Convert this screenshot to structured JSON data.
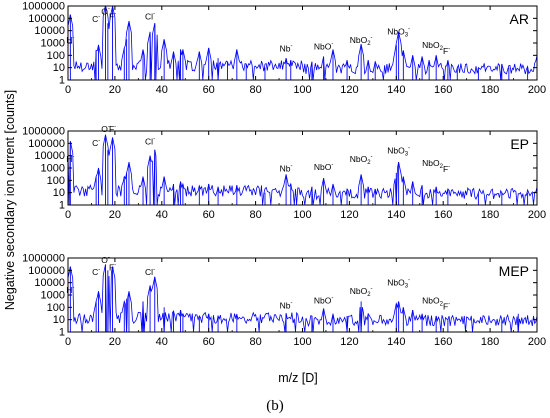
{
  "figure": {
    "ylabel": "Negative secondary ion current [counts]",
    "xlabel": "m/z [D]",
    "caption": "(b)"
  },
  "chart_data": [
    {
      "type": "line",
      "panel": "AR",
      "x_ticks": [
        0,
        20,
        40,
        60,
        80,
        100,
        120,
        140,
        160,
        180,
        200
      ],
      "y_ticks": [
        "1",
        "10",
        "100",
        "1000",
        "10000",
        "100000",
        "1000000"
      ],
      "xlim": [
        0,
        200
      ],
      "ylim": [
        1,
        1000000
      ],
      "yscale": "log",
      "series": [
        {
          "color": "#0000ff",
          "peaks": [
            [
              1,
              200000
            ],
            [
              12,
              250
            ],
            [
              13,
              700
            ],
            [
              16,
              1200000
            ],
            [
              17,
              40000
            ],
            [
              19,
              1000000
            ],
            [
              24,
              400
            ],
            [
              25,
              2000
            ],
            [
              26,
              60000
            ],
            [
              32,
              300
            ],
            [
              35,
              8000
            ],
            [
              37,
              40000
            ],
            [
              41,
              2000
            ],
            [
              45,
              200
            ],
            [
              48,
              300
            ],
            [
              49,
              300
            ],
            [
              56,
              200
            ],
            [
              60,
              400
            ],
            [
              64,
              60
            ],
            [
              68,
              30
            ],
            [
              72,
              300
            ],
            [
              76,
              20
            ],
            [
              84,
              10
            ],
            [
              93,
              60
            ],
            [
              95,
              40
            ],
            [
              104,
              30
            ],
            [
              109,
              80
            ],
            [
              113,
              300
            ],
            [
              119,
              40
            ],
            [
              125,
              800
            ],
            [
              128,
              40
            ],
            [
              131,
              30
            ],
            [
              140,
              700
            ],
            [
              141,
              8000
            ],
            [
              143,
              250
            ],
            [
              147,
              100
            ],
            [
              151,
              80
            ],
            [
              154,
              40
            ],
            [
              157,
              100
            ],
            [
              162,
              40
            ],
            [
              166,
              10
            ],
            [
              175,
              10
            ],
            [
              185,
              20
            ],
            [
              188,
              10
            ],
            [
              196,
              10
            ],
            [
              200,
              100
            ]
          ]
        }
      ],
      "annotations": [
        {
          "ion": "H",
          "charge": "-",
          "sub": "",
          "x": 1,
          "y": 1000
        },
        {
          "ion": "C",
          "charge": "-",
          "sub": "",
          "x": 12,
          "y": 50000
        },
        {
          "ion": "O",
          "charge": "-",
          "sub": "",
          "x": 16,
          "y": 200000
        },
        {
          "ion": "F",
          "charge": "-",
          "sub": "",
          "x": 19,
          "y": 80000
        },
        {
          "ion": "Cl",
          "charge": "-",
          "sub": "",
          "x": 35,
          "y": 80000
        },
        {
          "ion": "Nb",
          "charge": "-",
          "sub": "",
          "x": 93,
          "y": 200
        },
        {
          "ion": "NbO",
          "charge": "-",
          "sub": "",
          "x": 109,
          "y": 300
        },
        {
          "ion": "NbO",
          "charge": "-",
          "sub": "2",
          "x": 125,
          "y": 1000
        },
        {
          "ion": "NbO",
          "charge": "-",
          "sub": "3",
          "x": 141,
          "y": 5000
        },
        {
          "ion": "NbO",
          "charge": "",
          "sub": "2",
          "tail": "F",
          "tail_charge": "-",
          "x": 157,
          "y": 400
        }
      ]
    },
    {
      "type": "line",
      "panel": "EP",
      "x_ticks": [
        0,
        20,
        40,
        60,
        80,
        100,
        120,
        140,
        160,
        180,
        200
      ],
      "y_ticks": [
        "1",
        "10",
        "100",
        "1000",
        "10000",
        "100000",
        "1000000"
      ],
      "xlim": [
        0,
        200
      ],
      "ylim": [
        1,
        1000000
      ],
      "yscale": "log",
      "series": [
        {
          "color": "#0000ff",
          "peaks": [
            [
              1,
              150000
            ],
            [
              12,
              200
            ],
            [
              13,
              1000
            ],
            [
              16,
              500000
            ],
            [
              17,
              30000
            ],
            [
              19,
              300000
            ],
            [
              24,
              200
            ],
            [
              25,
              400
            ],
            [
              26,
              3000
            ],
            [
              32,
              200
            ],
            [
              35,
              10000
            ],
            [
              37,
              30000
            ],
            [
              41,
              200
            ],
            [
              45,
              50
            ],
            [
              48,
              80
            ],
            [
              49,
              50
            ],
            [
              56,
              30
            ],
            [
              60,
              50
            ],
            [
              64,
              30
            ],
            [
              72,
              40
            ],
            [
              84,
              10
            ],
            [
              93,
              300
            ],
            [
              95,
              50
            ],
            [
              104,
              30
            ],
            [
              109,
              150
            ],
            [
              113,
              50
            ],
            [
              119,
              20
            ],
            [
              125,
              300
            ],
            [
              128,
              30
            ],
            [
              131,
              20
            ],
            [
              140,
              400
            ],
            [
              141,
              3000
            ],
            [
              143,
              200
            ],
            [
              147,
              80
            ],
            [
              151,
              40
            ],
            [
              157,
              30
            ],
            [
              162,
              20
            ],
            [
              175,
              10
            ],
            [
              185,
              10
            ],
            [
              196,
              10
            ],
            [
              200,
              30
            ]
          ]
        }
      ],
      "annotations": [
        {
          "ion": "H",
          "charge": "-",
          "sub": "",
          "x": 1,
          "y": 3000
        },
        {
          "ion": "C",
          "charge": "-",
          "sub": "",
          "x": 12,
          "y": 60000
        },
        {
          "ion": "O",
          "charge": "-",
          "sub": "",
          "x": 16,
          "y": 800000
        },
        {
          "ion": "F",
          "charge": "-",
          "sub": "",
          "x": 19,
          "y": 800000
        },
        {
          "ion": "Cl",
          "charge": "-",
          "sub": "",
          "x": 35,
          "y": 80000
        },
        {
          "ion": "Nb",
          "charge": "-",
          "sub": "",
          "x": 93,
          "y": 500
        },
        {
          "ion": "NbO",
          "charge": "-",
          "sub": "",
          "x": 109,
          "y": 700
        },
        {
          "ion": "NbO",
          "charge": "-",
          "sub": "2",
          "x": 125,
          "y": 3000
        },
        {
          "ion": "NbO",
          "charge": "-",
          "sub": "3",
          "x": 141,
          "y": 15000
        },
        {
          "ion": "NbO",
          "charge": "",
          "sub": "2",
          "tail": "F",
          "tail_charge": "-",
          "x": 157,
          "y": 1500
        }
      ]
    },
    {
      "type": "line",
      "panel": "MEP",
      "x_ticks": [
        0,
        20,
        40,
        60,
        80,
        100,
        120,
        140,
        160,
        180,
        200
      ],
      "y_ticks": [
        "1",
        "10",
        "100",
        "1000",
        "10000",
        "100000",
        "1000000"
      ],
      "xlim": [
        0,
        200
      ],
      "ylim": [
        1,
        1000000
      ],
      "yscale": "log",
      "series": [
        {
          "color": "#0000ff",
          "peaks": [
            [
              1,
              200000
            ],
            [
              12,
              300
            ],
            [
              13,
              2000
            ],
            [
              16,
              300000
            ],
            [
              17,
              100000
            ],
            [
              19,
              200000
            ],
            [
              24,
              300
            ],
            [
              25,
              500
            ],
            [
              26,
              2000
            ],
            [
              32,
              300
            ],
            [
              35,
              6000
            ],
            [
              37,
              30000
            ],
            [
              41,
              100
            ],
            [
              45,
              50
            ],
            [
              48,
              60
            ],
            [
              49,
              30
            ],
            [
              56,
              20
            ],
            [
              60,
              30
            ],
            [
              64,
              20
            ],
            [
              72,
              20
            ],
            [
              93,
              30
            ],
            [
              104,
              20
            ],
            [
              109,
              80
            ],
            [
              113,
              30
            ],
            [
              119,
              20
            ],
            [
              125,
              300
            ],
            [
              128,
              30
            ],
            [
              140,
              200
            ],
            [
              141,
              300
            ],
            [
              143,
              100
            ],
            [
              147,
              60
            ],
            [
              151,
              30
            ],
            [
              157,
              20
            ],
            [
              162,
              10
            ],
            [
              185,
              10
            ],
            [
              192,
              30
            ],
            [
              200,
              20
            ]
          ]
        }
      ],
      "annotations": [
        {
          "ion": "H",
          "charge": "-",
          "sub": "",
          "x": 1,
          "y": 1500
        },
        {
          "ion": "C",
          "charge": "-",
          "sub": "",
          "x": 12,
          "y": 40000
        },
        {
          "ion": "O",
          "charge": "-",
          "sub": "",
          "x": 16,
          "y": 400000
        },
        {
          "ion": "F",
          "charge": "-",
          "sub": "",
          "x": 19,
          "y": 100000
        },
        {
          "ion": "Cl",
          "charge": "-",
          "sub": "",
          "x": 35,
          "y": 40000
        },
        {
          "ion": "Nb",
          "charge": "-",
          "sub": "",
          "x": 93,
          "y": 80
        },
        {
          "ion": "NbO",
          "charge": "-",
          "sub": "",
          "x": 109,
          "y": 200
        },
        {
          "ion": "NbO",
          "charge": "-",
          "sub": "2",
          "x": 125,
          "y": 1200
        },
        {
          "ion": "NbO",
          "charge": "-",
          "sub": "3",
          "x": 141,
          "y": 6000
        },
        {
          "ion": "NbO",
          "charge": "",
          "sub": "2",
          "tail": "F",
          "tail_charge": "-",
          "x": 157,
          "y": 200
        }
      ]
    }
  ]
}
